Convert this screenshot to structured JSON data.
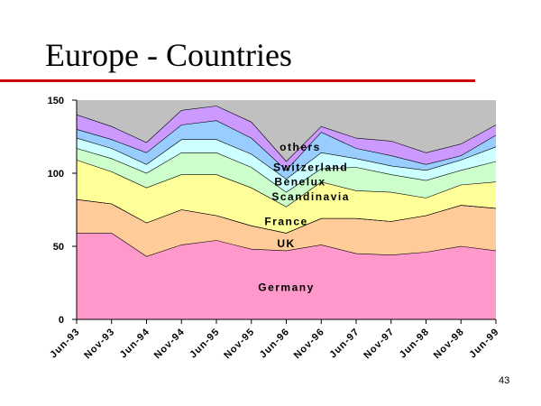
{
  "slide": {
    "title": "Europe - Countries",
    "page_number": "43",
    "rule_color": "#cc0000"
  },
  "chart_data": {
    "type": "area",
    "stacked": true,
    "categories": [
      "Jun-93",
      "Nov-93",
      "Jun-94",
      "Nov-94",
      "Jun-95",
      "Nov-95",
      "Jun-96",
      "Nov-96",
      "Jun-97",
      "Nov-97",
      "Jun-98",
      "Nov-98",
      "Jun-99"
    ],
    "ylim": [
      0,
      150
    ],
    "yticks": [
      0,
      50,
      100,
      150
    ],
    "background_color": "#c0c0c0",
    "series": [
      {
        "name": "Germany",
        "color": "#ff99cc",
        "values": [
          59,
          59,
          43,
          51,
          54,
          48,
          47,
          51,
          45,
          44,
          46,
          50,
          47
        ]
      },
      {
        "name": "UK",
        "color": "#ffcc99",
        "values": [
          23,
          20,
          23,
          24,
          17,
          16,
          12,
          18,
          24,
          23,
          25,
          28,
          29
        ]
      },
      {
        "name": "France",
        "color": "#ffffcc",
        "values": [
          0,
          0,
          0,
          0,
          0,
          0,
          0,
          0,
          0,
          0,
          0,
          0,
          0
        ]
      },
      {
        "name": "Scandinavia",
        "color": "#ffff99",
        "values": [
          27,
          22,
          24,
          24,
          28,
          26,
          18,
          25,
          19,
          20,
          12,
          14,
          18
        ]
      },
      {
        "name": "Benelux",
        "color": "#ccffcc",
        "values": [
          8,
          9,
          10,
          15,
          15,
          14,
          10,
          9,
          16,
          12,
          12,
          10,
          14
        ]
      },
      {
        "name": "Switzerland",
        "color": "#ccffff",
        "values": [
          7,
          7,
          6,
          9,
          9,
          9,
          9,
          11,
          6,
          6,
          7,
          7,
          10
        ]
      },
      {
        "name": "others",
        "color": "#99ccff",
        "values": [
          6,
          6,
          8,
          10,
          13,
          11,
          6,
          14,
          7,
          7,
          4,
          3,
          8
        ]
      },
      {
        "name": "",
        "color": "#cc99ff",
        "values": [
          10,
          9,
          7,
          10,
          10,
          11,
          6,
          4,
          7,
          10,
          8,
          8,
          7
        ]
      }
    ],
    "labels": [
      {
        "text": "others",
        "series": "others",
        "x_index": 6.4,
        "y_value": 118
      },
      {
        "text": "Switzerland",
        "series": "Switzerland",
        "x_index": 6.7,
        "y_value": 104
      },
      {
        "text": "Benelux",
        "series": "Benelux",
        "x_index": 6.4,
        "y_value": 94
      },
      {
        "text": "Scandinavia",
        "series": "Scandinavia",
        "x_index": 6.7,
        "y_value": 84
      },
      {
        "text": "France",
        "series": "France",
        "x_index": 6.0,
        "y_value": 67
      },
      {
        "text": "UK",
        "series": "UK",
        "x_index": 6.0,
        "y_value": 52
      },
      {
        "text": "Germany",
        "series": "Germany",
        "x_index": 6.0,
        "y_value": 22
      }
    ]
  }
}
